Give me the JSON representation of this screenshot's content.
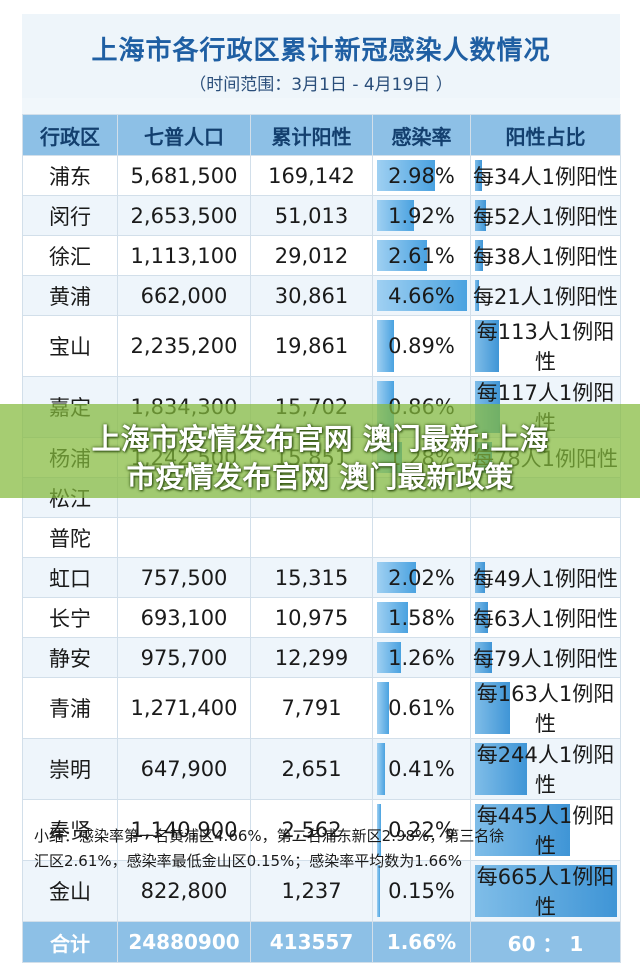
{
  "header": {
    "title": "上海市各行政区累计新冠感染人数情况",
    "subtitle": "（时间范围：3月1日 - 4月19日 ）"
  },
  "chart_data": {
    "type": "table",
    "columns": [
      "行政区",
      "七普人口",
      "累计阳性",
      "感染率",
      "阳性占比"
    ],
    "rows": [
      {
        "district": "浦东",
        "population": "5,681,500",
        "positive": "169,142",
        "rate_text": "2.98%",
        "rate": 2.98,
        "share_text": "每34人1例阳性",
        "per": 34
      },
      {
        "district": "闵行",
        "population": "2,653,500",
        "positive": "51,013",
        "rate_text": "1.92%",
        "rate": 1.92,
        "share_text": "每52人1例阳性",
        "per": 52
      },
      {
        "district": "徐汇",
        "population": "1,113,100",
        "positive": "29,012",
        "rate_text": "2.61%",
        "rate": 2.61,
        "share_text": "每38人1例阳性",
        "per": 38
      },
      {
        "district": "黄浦",
        "population": "662,000",
        "positive": "30,861",
        "rate_text": "4.66%",
        "rate": 4.66,
        "share_text": "每21人1例阳性",
        "per": 21
      },
      {
        "district": "宝山",
        "population": "2,235,200",
        "positive": "19,861",
        "rate_text": "0.89%",
        "rate": 0.89,
        "share_text": "每113人1例阳性",
        "per": 113
      },
      {
        "district": "嘉定",
        "population": "1,834,300",
        "positive": "15,702",
        "rate_text": "0.86%",
        "rate": 0.86,
        "share_text": "每117人1例阳性",
        "per": 117
      },
      {
        "district": "杨浦",
        "population": "1,242,500",
        "positive": "15,851",
        "rate_text": "1.28%",
        "rate": 1.28,
        "share_text": "每78人1例阳性",
        "per": 78
      },
      {
        "district": "松江",
        "population": "",
        "positive": "",
        "rate_text": "",
        "rate": null,
        "share_text": "",
        "per": null
      },
      {
        "district": "普陀",
        "population": "",
        "positive": "",
        "rate_text": "",
        "rate": null,
        "share_text": "",
        "per": null
      },
      {
        "district": "虹口",
        "population": "757,500",
        "positive": "15,315",
        "rate_text": "2.02%",
        "rate": 2.02,
        "share_text": "每49人1例阳性",
        "per": 49
      },
      {
        "district": "长宁",
        "population": "693,100",
        "positive": "10,975",
        "rate_text": "1.58%",
        "rate": 1.58,
        "share_text": "每63人1例阳性",
        "per": 63
      },
      {
        "district": "静安",
        "population": "975,700",
        "positive": "12,299",
        "rate_text": "1.26%",
        "rate": 1.26,
        "share_text": "每79人1例阳性",
        "per": 79
      },
      {
        "district": "青浦",
        "population": "1,271,400",
        "positive": "7,791",
        "rate_text": "0.61%",
        "rate": 0.61,
        "share_text": "每163人1例阳性",
        "per": 163
      },
      {
        "district": "崇明",
        "population": "647,900",
        "positive": "2,651",
        "rate_text": "0.41%",
        "rate": 0.41,
        "share_text": "每244人1例阳性",
        "per": 244
      },
      {
        "district": "奉贤",
        "population": "1,140,900",
        "positive": "2,562",
        "rate_text": "0.22%",
        "rate": 0.22,
        "share_text": "每445人1例阳性",
        "per": 445
      },
      {
        "district": "金山",
        "population": "822,800",
        "positive": "1,237",
        "rate_text": "0.15%",
        "rate": 0.15,
        "share_text": "每665人1例阳性",
        "per": 665
      }
    ],
    "total": {
      "label": "合计",
      "population": "24880900",
      "positive": "413557",
      "rate": "1.66%",
      "share": "60 ： 1"
    },
    "rate_max": 4.66,
    "per_max": 665
  },
  "summary": {
    "line1": "小结：感染率第一名黄浦区4.66%，第二名浦东新区2.98%，第三名徐",
    "line2": "汇区2.61%，感染率最低金山区0.15%；感染率平均数为1.66%"
  },
  "watermark": {
    "line1": "上海市疫情发布官网 澳门最新:上海",
    "line2": "市疫情发布官网 澳门最新政策"
  },
  "colors": {
    "title": "#1f5fa3",
    "header_bg": "#8dc0e6",
    "bar": "#4aa2e0",
    "watermark_bg": "#84ba3c"
  }
}
